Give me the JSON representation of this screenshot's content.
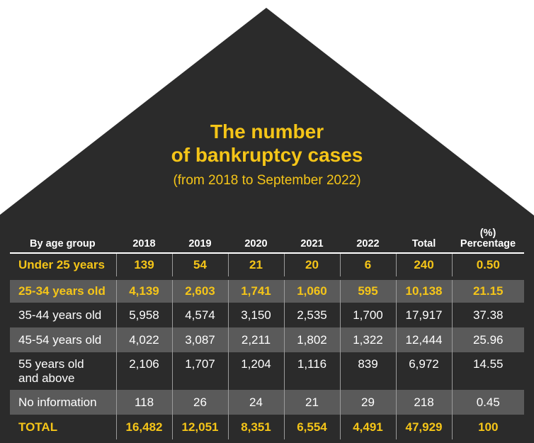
{
  "title_line1": "The number",
  "title_line2": "of bankruptcy cases",
  "subtitle": "(from 2018 to September 2022)",
  "colors": {
    "background": "#2b2b2b",
    "accent": "#f5c518",
    "row_shade": "#5a5a5a",
    "text": "#ffffff"
  },
  "chart_data": {
    "type": "table",
    "title": "The number of bankruptcy cases",
    "subtitle": "(from 2018 to September 2022)",
    "columns": [
      "By age group",
      "2018",
      "2019",
      "2020",
      "2021",
      "2022",
      "Total",
      "(%)\nPercentage"
    ],
    "rows": [
      {
        "label": "Under 25 years",
        "values": [
          "139",
          "54",
          "21",
          "20",
          "6",
          "240",
          "0.50"
        ]
      },
      {
        "label": "25-34 years old",
        "values": [
          "4,139",
          "2,603",
          "1,741",
          "1,060",
          "595",
          "10,138",
          "21.15"
        ]
      },
      {
        "label": "35-44 years old",
        "values": [
          "5,958",
          "4,574",
          "3,150",
          "2,535",
          "1,700",
          "17,917",
          "37.38"
        ]
      },
      {
        "label": "45-54 years old",
        "values": [
          "4,022",
          "3,087",
          "2,211",
          "1,802",
          "1,322",
          "12,444",
          "25.96"
        ]
      },
      {
        "label": "55 years old\nand above",
        "values": [
          "2,106",
          "1,707",
          "1,204",
          "1,116",
          "839",
          "6,972",
          "14.55"
        ]
      },
      {
        "label": "No information",
        "values": [
          "118",
          "26",
          "24",
          "21",
          "29",
          "218",
          "0.45"
        ]
      },
      {
        "label": "TOTAL",
        "values": [
          "16,482",
          "12,051",
          "8,351",
          "6,554",
          "4,491",
          "47,929",
          "100"
        ]
      }
    ]
  }
}
